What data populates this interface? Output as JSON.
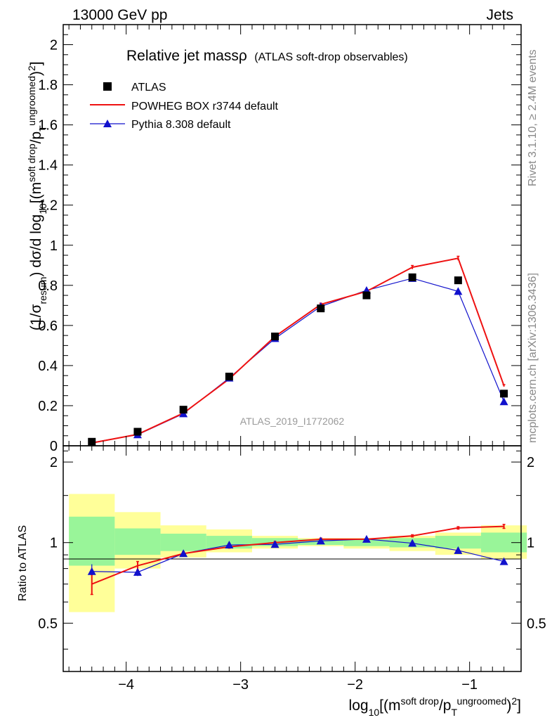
{
  "header": {
    "left_title": "13000 GeV pp",
    "right_title": "Jets",
    "plot_title": "Relative jet massρ",
    "plot_subtitle": "(ATLAS soft-drop observables)",
    "analysis_id": "ATLAS_2019_I1772062",
    "side_rivet": "Rivet 3.1.10, ≥ 2.4M events",
    "side_mcplots": "mcplots.cern.ch [arXiv:1306.3436]"
  },
  "axes": {
    "x_label": "log₁₀[(m^(soft drop)/p_T^(ungroomed))²]",
    "y_label_main": "(1/σ_resum) dσ/d log₁₀[(m^(soft drop)/p_T^(ungroomed))²]",
    "y_label_ratio": "Ratio to ATLAS",
    "x_ticks": [
      "−4",
      "−3",
      "−2",
      "−1"
    ],
    "y_ticks_main": [
      "0",
      "0.2",
      "0.4",
      "0.6",
      "0.8",
      "1",
      "1.2",
      "1.4",
      "1.6",
      "1.8",
      "2"
    ],
    "y_ticks_ratio": [
      "0.5",
      "1",
      "2"
    ]
  },
  "colors": {
    "atlas": "#000000",
    "powheg": "#ee1111",
    "pythia": "#1111cc",
    "band_inner": "#99f599",
    "band_outer": "#ffff99"
  },
  "chart_data": {
    "type": "line",
    "title": "Relative jet massρ (ATLAS soft-drop observables)",
    "xlabel": "log10[(m^soft drop/p_T^ungroomed)^2]",
    "ylabel": "(1/σ_resum) dσ/d log10[(m^soft drop/p_T^ungroomed)^2]",
    "xlim": [
      -4.55,
      -0.55
    ],
    "ylim": [
      0,
      2.1
    ],
    "ratio_ylim": [
      0.33,
      2.3
    ],
    "ratio_scale": "log",
    "bin_edges": [
      -4.5,
      -4.1,
      -3.7,
      -3.3,
      -2.9,
      -2.5,
      -2.1,
      -1.7,
      -1.3,
      -0.9,
      -0.5
    ],
    "x": [
      -4.3,
      -3.9,
      -3.5,
      -3.1,
      -2.7,
      -2.3,
      -1.9,
      -1.5,
      -1.1,
      -0.7
    ],
    "series": [
      {
        "name": "ATLAS",
        "marker": "square",
        "values": [
          0.02,
          0.07,
          0.18,
          0.345,
          0.545,
          0.685,
          0.75,
          0.84,
          0.825,
          0.26
        ]
      },
      {
        "name": "POWHEG BOX r3744 default",
        "marker": "line",
        "values": [
          0.014,
          0.057,
          0.163,
          0.333,
          0.545,
          0.705,
          0.77,
          0.89,
          0.935,
          0.3
        ],
        "errors": [
          0.001,
          0.002,
          0.003,
          0.004,
          0.005,
          0.006,
          0.006,
          0.009,
          0.01,
          0.005
        ]
      },
      {
        "name": "Pythia 8.308 default",
        "marker": "triangle",
        "values": [
          0.016,
          0.055,
          0.16,
          0.338,
          0.535,
          0.695,
          0.775,
          0.835,
          0.77,
          0.22
        ],
        "errors": [
          0.001,
          0.002,
          0.003,
          0.004,
          0.005,
          0.006,
          0.006,
          0.008,
          0.008,
          0.004
        ]
      }
    ],
    "ratio": {
      "ylabel": "Ratio to ATLAS",
      "powheg": {
        "values": [
          0.7,
          0.82,
          0.91,
          0.965,
          1.0,
          1.03,
          1.03,
          1.06,
          1.135,
          1.15
        ],
        "errors": [
          0.06,
          0.03,
          0.015,
          0.012,
          0.01,
          0.01,
          0.01,
          0.01,
          0.012,
          0.02
        ]
      },
      "pythia": {
        "values": [
          0.78,
          0.775,
          0.91,
          0.98,
          0.985,
          1.015,
          1.03,
          0.995,
          0.935,
          0.85
        ],
        "errors": [
          0.05,
          0.025,
          0.015,
          0.012,
          0.01,
          0.01,
          0.01,
          0.01,
          0.01,
          0.01
        ]
      },
      "band_inner": [
        [
          0.82,
          1.25
        ],
        [
          0.9,
          1.13
        ],
        [
          0.93,
          1.08
        ],
        [
          0.95,
          1.06
        ],
        [
          0.97,
          1.04
        ],
        [
          0.98,
          1.03
        ],
        [
          0.97,
          1.03
        ],
        [
          0.96,
          1.04
        ],
        [
          0.95,
          1.06
        ],
        [
          0.92,
          1.09
        ]
      ],
      "band_outer": [
        [
          0.55,
          1.52
        ],
        [
          0.8,
          1.3
        ],
        [
          0.88,
          1.16
        ],
        [
          0.92,
          1.12
        ],
        [
          0.95,
          1.06
        ],
        [
          0.97,
          1.04
        ],
        [
          0.95,
          1.04
        ],
        [
          0.93,
          1.06
        ],
        [
          0.9,
          1.09
        ],
        [
          0.87,
          1.16
        ]
      ]
    },
    "legend": {
      "position": "top-left",
      "entries": [
        "ATLAS",
        "POWHEG BOX r3744 default",
        "Pythia 8.308 default"
      ]
    },
    "grid": false
  }
}
